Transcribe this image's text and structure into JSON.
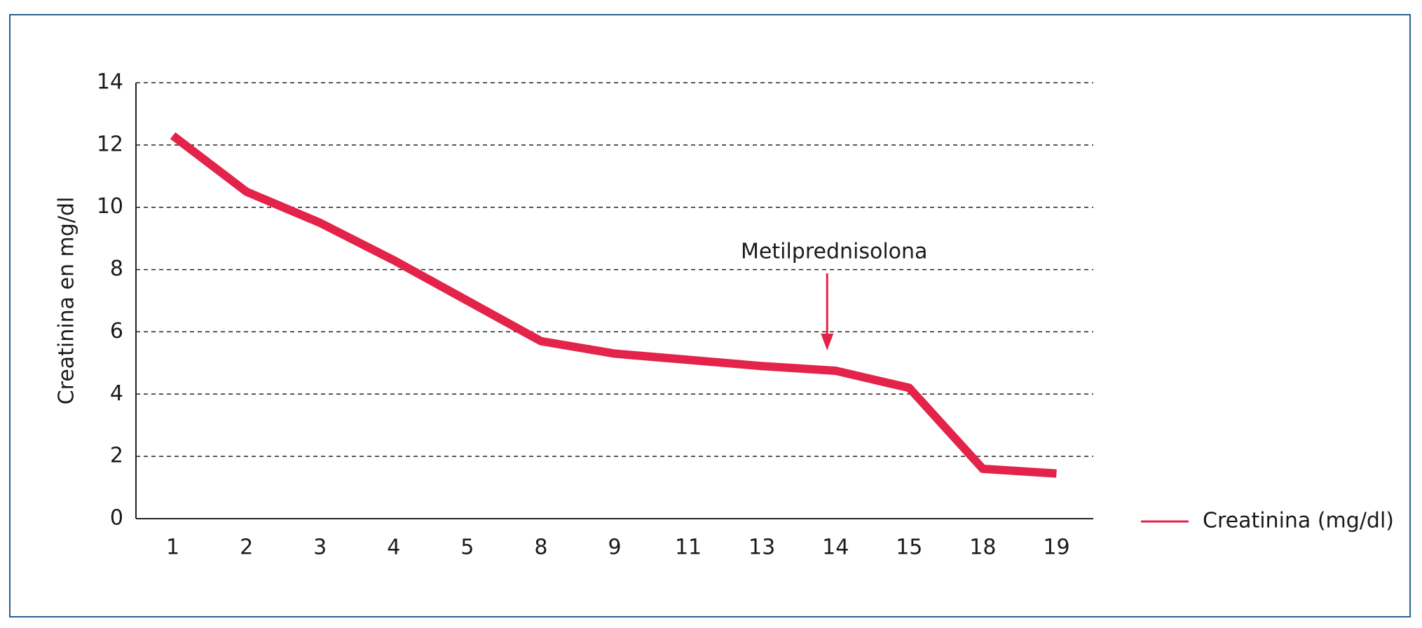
{
  "chart_data": {
    "type": "line",
    "y_label": "Creatinina en mg/dl",
    "categories": [
      "1",
      "2",
      "3",
      "4",
      "5",
      "8",
      "9",
      "11",
      "13",
      "14",
      "15",
      "18",
      "19"
    ],
    "series": [
      {
        "name": "Creatinina (mg/dl)",
        "color": "#e3234a",
        "values": [
          12.3,
          10.5,
          9.5,
          8.3,
          7.0,
          5.7,
          5.3,
          5.1,
          4.9,
          4.75,
          4.2,
          1.6,
          1.45
        ]
      }
    ],
    "ylim": [
      0,
      14
    ],
    "yticks": [
      0,
      2,
      4,
      6,
      8,
      10,
      12,
      14
    ],
    "grid": true,
    "legend": "right",
    "annotation": "Metilprednisolona"
  }
}
